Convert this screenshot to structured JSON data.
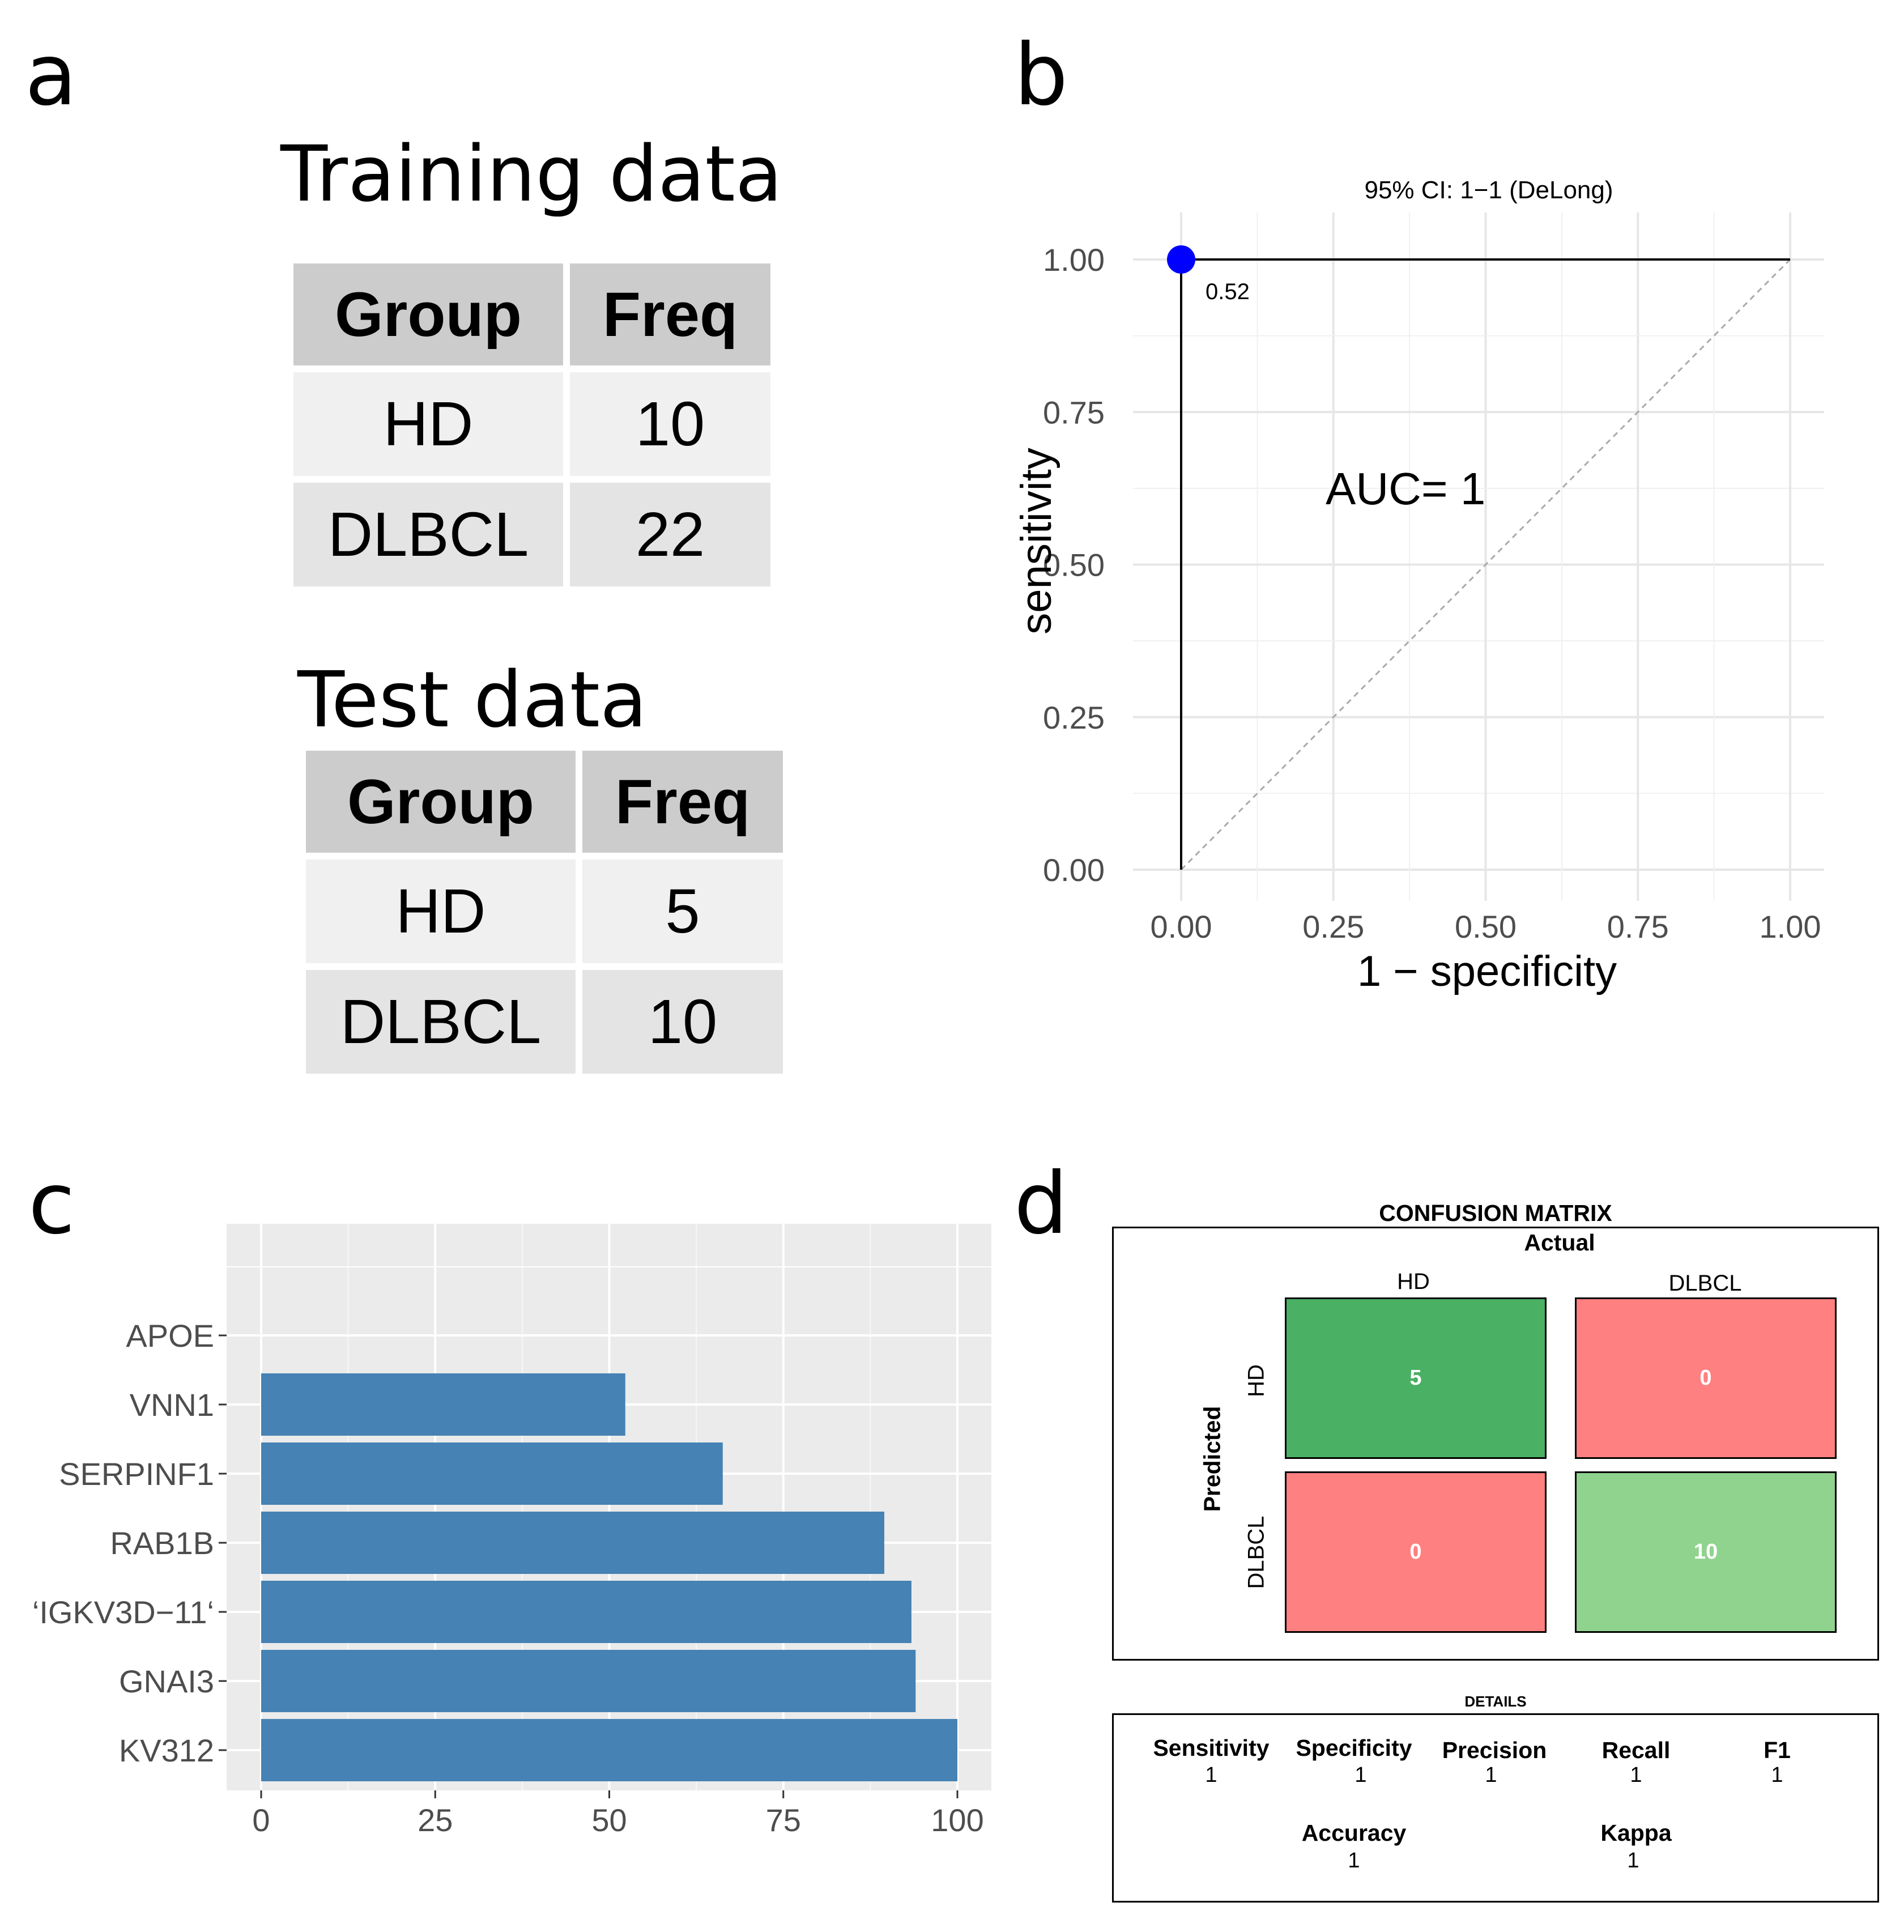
{
  "panels": {
    "a": "a",
    "b": "b",
    "c": "c",
    "d": "d"
  },
  "training_table": {
    "title": "Training data",
    "headers": [
      "Group",
      "Freq"
    ],
    "rows": [
      [
        "HD",
        "10"
      ],
      [
        "DLBCL",
        "22"
      ]
    ]
  },
  "test_table": {
    "title": "Test data",
    "headers": [
      "Group",
      "Freq"
    ],
    "rows": [
      [
        "HD",
        "5"
      ],
      [
        "DLBCL",
        "10"
      ]
    ]
  },
  "chart_data": [
    {
      "type": "line",
      "panel": "b",
      "title": "95% CI: 1−1 (DeLong)",
      "xlabel": "1 − specificity",
      "ylabel": "sensitivity",
      "xlim": [
        0,
        1
      ],
      "ylim": [
        0,
        1
      ],
      "x_ticks": [
        "0.00",
        "0.25",
        "0.50",
        "0.75",
        "1.00"
      ],
      "y_ticks": [
        "0.00",
        "0.25",
        "0.50",
        "0.75",
        "1.00"
      ],
      "series": [
        {
          "name": "ROC",
          "x": [
            0,
            0,
            1
          ],
          "y": [
            0,
            1,
            1
          ]
        },
        {
          "name": "reference",
          "x": [
            0,
            1
          ],
          "y": [
            0,
            1
          ]
        }
      ],
      "threshold_point": {
        "x": 0,
        "y": 1,
        "label": "0.52"
      },
      "annotation": "AUC=  1",
      "colors": {
        "point": "#0000ff",
        "curve": "#000000",
        "diagonal": "#aaaaaa"
      }
    },
    {
      "type": "bar",
      "panel": "c",
      "orientation": "horizontal",
      "categories": [
        "APOE",
        "VNN1",
        "SERPINF1",
        "RAB1B",
        "‘IGKV3D−11‘",
        "GNAI3",
        "KV312"
      ],
      "values": [
        0,
        52.3,
        66.3,
        89.5,
        93.4,
        94.0,
        100
      ],
      "xlim": [
        0,
        100
      ],
      "x_ticks": [
        "0",
        "25",
        "50",
        "75",
        "100"
      ],
      "xlabel": "",
      "ylabel": "",
      "colors": {
        "bar": "#4682b4",
        "panel_bg": "#ebebeb"
      }
    }
  ],
  "confusion": {
    "title": "CONFUSION MATRIX",
    "actual_label": "Actual",
    "predicted_label": "Predicted",
    "col_labels": [
      "HD",
      "DLBCL"
    ],
    "row_labels": [
      "HD",
      "DLBCL"
    ],
    "values": [
      [
        "5",
        "0"
      ],
      [
        "0",
        "10"
      ]
    ],
    "colors": {
      "tp_hd": "#4ab063",
      "fp": "#ff8080",
      "tp_dlbcl": "#90d38f"
    }
  },
  "details": {
    "title": "DETAILS",
    "metrics": [
      {
        "name": "Sensitivity",
        "value": "1"
      },
      {
        "name": "Specificity",
        "value": "1"
      },
      {
        "name": "Precision",
        "value": "1"
      },
      {
        "name": "Recall",
        "value": "1"
      },
      {
        "name": "F1",
        "value": "1"
      },
      {
        "name": "Accuracy",
        "value": "1"
      },
      {
        "name": "Kappa",
        "value": "1"
      }
    ]
  }
}
